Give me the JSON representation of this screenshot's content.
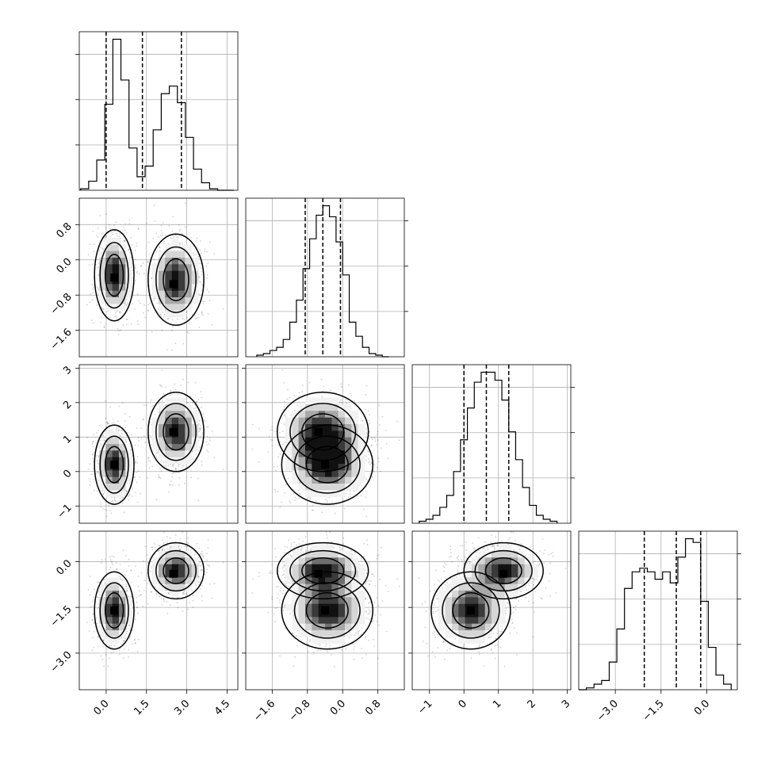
{
  "chart_data": {
    "type": "corner",
    "dims": [
      {
        "range": [
          -1.0,
          4.9
        ],
        "ticks": [
          0.0,
          1.5,
          3.0,
          4.5
        ],
        "tick_labels": [
          "0.0",
          "1.5",
          "3.0",
          "4.5"
        ],
        "hist": {
          "bins": [
            -0.95,
            -0.65,
            -0.35,
            -0.05,
            0.25,
            0.55,
            0.85,
            1.15,
            1.45,
            1.75,
            2.05,
            2.35,
            2.65,
            2.95,
            3.25,
            3.55,
            3.85,
            4.15,
            4.45,
            4.75
          ],
          "values": [
            1,
            6,
            20,
            57,
            100,
            73,
            28,
            9,
            16,
            40,
            64,
            69,
            58,
            35,
            14,
            5,
            1,
            0,
            0
          ]
        },
        "quantiles": [
          0.0,
          1.35,
          2.8
        ]
      },
      {
        "range": [
          -2.2,
          1.4
        ],
        "ticks": [
          -1.6,
          -0.8,
          0.0,
          0.8
        ],
        "tick_labels": [
          "−1.6",
          "−0.8",
          "0.0",
          "0.8"
        ],
        "hist": {
          "bins": [
            -1.95,
            -1.8,
            -1.65,
            -1.5,
            -1.35,
            -1.2,
            -1.05,
            -0.9,
            -0.75,
            -0.6,
            -0.45,
            -0.3,
            -0.15,
            0.0,
            0.15,
            0.3,
            0.45,
            0.6,
            0.75,
            0.9,
            1.05
          ],
          "values": [
            1,
            2,
            4,
            6,
            11,
            22,
            36,
            56,
            75,
            90,
            96,
            89,
            73,
            52,
            22,
            13,
            6,
            2,
            1,
            0
          ]
        },
        "quantiles": [
          -0.85,
          -0.45,
          -0.05
        ]
      },
      {
        "range": [
          -1.5,
          3.1
        ],
        "ticks": [
          -1,
          0,
          1,
          2,
          3
        ],
        "tick_labels": [
          "−1",
          "0",
          "1",
          "2",
          "3"
        ],
        "hist": {
          "bins": [
            -1.3,
            -1.1,
            -0.9,
            -0.7,
            -0.5,
            -0.3,
            -0.1,
            0.1,
            0.3,
            0.5,
            0.7,
            0.9,
            1.1,
            1.3,
            1.5,
            1.7,
            1.9,
            2.1,
            2.3,
            2.5,
            2.7
          ],
          "values": [
            1,
            2,
            4,
            8,
            14,
            26,
            42,
            58,
            71,
            76,
            76,
            72,
            62,
            46,
            32,
            18,
            9,
            4,
            2,
            1
          ]
        },
        "quantiles": [
          0.0,
          0.65,
          1.3
        ]
      },
      {
        "range": [
          -4.2,
          1.0
        ],
        "ticks": [
          -3.0,
          -1.5,
          0.0
        ],
        "tick_labels": [
          "−3.0",
          "−1.5",
          "0.0"
        ],
        "hist": {
          "bins": [
            -4.2,
            -3.95,
            -3.7,
            -3.45,
            -3.2,
            -2.95,
            -2.7,
            -2.45,
            -2.2,
            -1.95,
            -1.7,
            -1.45,
            -1.2,
            -0.95,
            -0.7,
            -0.45,
            -0.2,
            0.05,
            0.3,
            0.55,
            0.8
          ],
          "values": [
            0,
            1,
            3,
            5,
            15,
            33,
            55,
            64,
            66,
            64,
            60,
            64,
            58,
            72,
            82,
            80,
            48,
            23,
            8,
            3
          ]
        },
        "quantiles": [
          -2.05,
          -1.0,
          -0.2
        ]
      }
    ],
    "left_ticks": [
      null,
      {
        "ticks": [
          -1.6,
          -0.8,
          0.0,
          0.8
        ],
        "tick_labels": [
          "−1.6",
          "−0.8",
          "0.0",
          "0.8"
        ]
      },
      {
        "ticks": [
          -1,
          0,
          1,
          2,
          3
        ],
        "tick_labels": [
          "−1",
          "0",
          "1",
          "2",
          "3"
        ]
      },
      {
        "ticks": [
          -3.0,
          -1.5,
          0.0
        ],
        "tick_labels": [
          "−3.0",
          "−1.5",
          "0.0"
        ]
      }
    ],
    "clusters": [
      {
        "mean": [
          0.3,
          -0.35,
          0.2,
          -1.6
        ],
        "std": [
          0.32,
          0.45,
          0.5,
          0.55
        ],
        "peak": [
          0.3,
          -0.4,
          0.2,
          -1.6
        ]
      },
      {
        "mean": [
          2.6,
          -0.45,
          1.15,
          -0.3
        ],
        "std": [
          0.45,
          0.45,
          0.5,
          0.4
        ],
        "peak": [
          2.5,
          -0.55,
          1.15,
          -0.4
        ]
      }
    ],
    "contour_levels": [
      0.8,
      0.45,
      0.15,
      0.04
    ],
    "grid": true,
    "title": "",
    "xlabel": "",
    "ylabel": ""
  }
}
